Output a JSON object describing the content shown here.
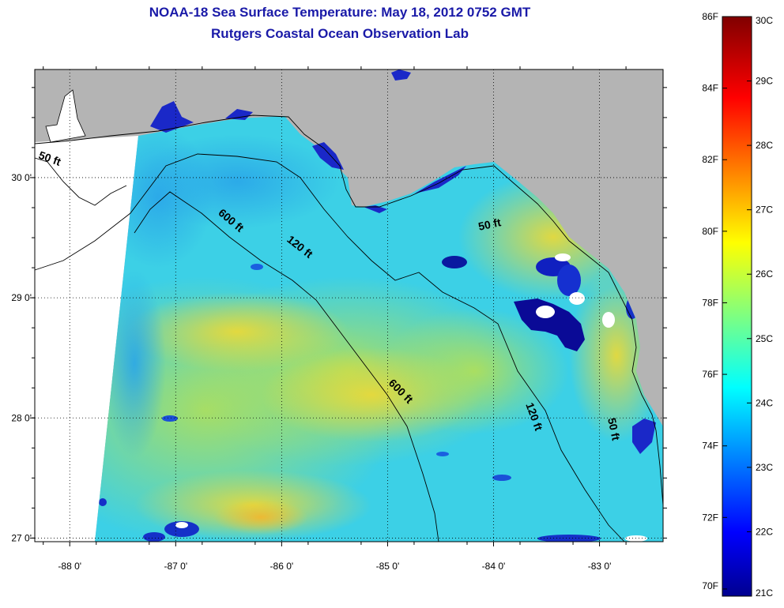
{
  "header": {
    "title": "NOAA-18 Sea Surface Temperature:  May 18, 2012 0752 GMT",
    "subtitle": "Rutgers Coastal Ocean Observation Lab"
  },
  "map": {
    "lon_range": [
      -88.33,
      -82.4
    ],
    "lat_range": [
      26.97,
      30.9
    ],
    "lon_ticks": [
      {
        "value": -88,
        "label": "-88 0'"
      },
      {
        "value": -87,
        "label": "-87 0'"
      },
      {
        "value": -86,
        "label": "-86 0'"
      },
      {
        "value": -85,
        "label": "-85 0'"
      },
      {
        "value": -84,
        "label": "-84 0'"
      },
      {
        "value": -83,
        "label": "-83 0'"
      }
    ],
    "lat_ticks": [
      {
        "value": 30,
        "label": "30 0'"
      },
      {
        "value": 29,
        "label": "29 0'"
      },
      {
        "value": 28,
        "label": "28 0'"
      },
      {
        "value": 27,
        "label": "27 0'"
      }
    ],
    "contour_labels": [
      {
        "text": "50 ft",
        "lon": -88.2,
        "lat": 30.13,
        "rotate": 20
      },
      {
        "text": "600 ft",
        "lon": -86.5,
        "lat": 29.62,
        "rotate": 40
      },
      {
        "text": "120 ft",
        "lon": -85.85,
        "lat": 29.4,
        "rotate": 38
      },
      {
        "text": "50 ft",
        "lon": -84.03,
        "lat": 29.58,
        "rotate": -12
      },
      {
        "text": "600 ft",
        "lon": -84.9,
        "lat": 28.2,
        "rotate": 45
      },
      {
        "text": "120 ft",
        "lon": -83.65,
        "lat": 28.0,
        "rotate": 70
      },
      {
        "text": "50 ft",
        "lon": -82.9,
        "lat": 27.9,
        "rotate": 78
      }
    ],
    "colors": {
      "land": "#b4b4b4",
      "nodata": "#ffffff"
    }
  },
  "colorbar": {
    "min_c": 21,
    "max_c": 30,
    "f_ticks": [
      "86F",
      "84F",
      "82F",
      "80F",
      "78F",
      "76F",
      "74F",
      "72F",
      "70F"
    ],
    "c_ticks": [
      "30C",
      "29C",
      "28C",
      "27C",
      "26C",
      "25C",
      "24C",
      "23C",
      "22C",
      "21C"
    ]
  }
}
